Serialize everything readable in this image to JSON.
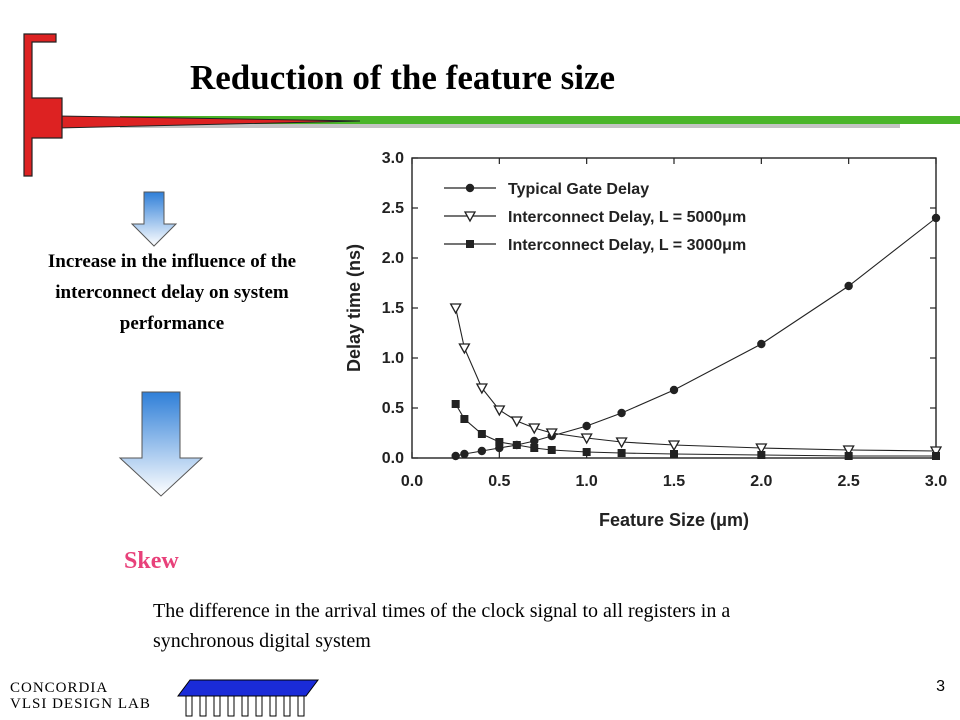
{
  "slide": {
    "title": "Reduction of the feature size",
    "influence_text": "Increase in the influence of the interconnect delay on system performance",
    "skew_heading": "Skew",
    "skew_definition": "The difference in the arrival times of the clock signal to all registers in a synchronous digital system",
    "page_number": "3",
    "lab_name_line1": "CONCORDIA",
    "lab_name_line2": "VLSI DESIGN LAB"
  },
  "colors": {
    "skew_heading": "#e8417a",
    "accent_red": "#dd2222",
    "accent_green": "#4ab52a",
    "arrow_gradient_top": "#2f7fd8",
    "arrow_gradient_bottom": "#ffffff",
    "chip_blue": "#1a2bd8",
    "chart_ink": "#222222"
  },
  "chart_data": {
    "type": "line",
    "xlabel": "Feature Size (μm)",
    "ylabel": "Delay time (ns)",
    "xlim": [
      0.0,
      3.0
    ],
    "ylim": [
      0.0,
      3.0
    ],
    "x_ticks": [
      "0.0",
      "0.5",
      "1.0",
      "1.5",
      "2.0",
      "2.5",
      "3.0"
    ],
    "y_ticks": [
      "0.0",
      "0.5",
      "1.0",
      "1.5",
      "2.0",
      "2.5",
      "3.0"
    ],
    "legend_position": "top",
    "grid": false,
    "series": [
      {
        "name": "Typical Gate Delay",
        "marker": "circle",
        "x": [
          0.25,
          0.3,
          0.4,
          0.5,
          0.6,
          0.7,
          0.8,
          1.0,
          1.2,
          1.5,
          2.0,
          2.5,
          3.0
        ],
        "y": [
          0.02,
          0.04,
          0.07,
          0.1,
          0.13,
          0.17,
          0.22,
          0.32,
          0.45,
          0.68,
          1.14,
          1.72,
          2.4
        ]
      },
      {
        "name": "Interconnect Delay, L = 5000μm",
        "marker": "triangle-down",
        "x": [
          0.25,
          0.3,
          0.4,
          0.5,
          0.6,
          0.7,
          0.8,
          1.0,
          1.2,
          1.5,
          2.0,
          2.5,
          3.0
        ],
        "y": [
          1.5,
          1.1,
          0.7,
          0.48,
          0.37,
          0.3,
          0.25,
          0.2,
          0.16,
          0.13,
          0.1,
          0.08,
          0.07
        ]
      },
      {
        "name": "Interconnect Delay, L = 3000μm",
        "marker": "square",
        "x": [
          0.25,
          0.3,
          0.4,
          0.5,
          0.6,
          0.7,
          0.8,
          1.0,
          1.2,
          1.5,
          2.0,
          2.5,
          3.0
        ],
        "y": [
          0.54,
          0.39,
          0.24,
          0.16,
          0.13,
          0.1,
          0.08,
          0.06,
          0.05,
          0.04,
          0.03,
          0.02,
          0.02
        ]
      }
    ]
  }
}
